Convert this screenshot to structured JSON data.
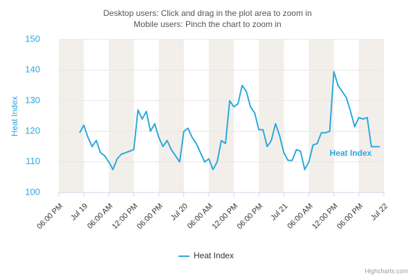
{
  "chart_data": {
    "type": "line",
    "title": "Desktop users: Click and drag in the plot area to zoom in",
    "subtitle": "Mobile users: Pinch the chart to zoom in",
    "yaxis_title": "Heat Index",
    "credits": "Highcharts.com",
    "x": [
      "Jul 18 23:00",
      "Jul 19 00:00",
      "Jul 19 01:00",
      "Jul 19 02:00",
      "Jul 19 03:00",
      "Jul 19 04:00",
      "Jul 19 05:00",
      "Jul 19 06:00",
      "Jul 19 07:00",
      "Jul 19 08:00",
      "Jul 19 09:00",
      "Jul 19 10:00",
      "Jul 19 11:00",
      "Jul 19 12:00",
      "Jul 19 13:00",
      "Jul 19 14:00",
      "Jul 19 15:00",
      "Jul 19 16:00",
      "Jul 19 17:00",
      "Jul 19 18:00",
      "Jul 19 19:00",
      "Jul 19 20:00",
      "Jul 19 21:00",
      "Jul 19 22:00",
      "Jul 19 23:00",
      "Jul 20 00:00",
      "Jul 20 01:00",
      "Jul 20 02:00",
      "Jul 20 03:00",
      "Jul 20 04:00",
      "Jul 20 05:00",
      "Jul 20 06:00",
      "Jul 20 07:00",
      "Jul 20 08:00",
      "Jul 20 09:00",
      "Jul 20 10:00",
      "Jul 20 11:00",
      "Jul 20 12:00",
      "Jul 20 13:00",
      "Jul 20 14:00",
      "Jul 20 15:00",
      "Jul 20 16:00",
      "Jul 20 17:00",
      "Jul 20 18:00",
      "Jul 20 19:00",
      "Jul 20 20:00",
      "Jul 20 21:00",
      "Jul 20 22:00",
      "Jul 20 23:00",
      "Jul 21 00:00",
      "Jul 21 01:00",
      "Jul 21 02:00",
      "Jul 21 03:00",
      "Jul 21 04:00",
      "Jul 21 05:00",
      "Jul 21 06:00",
      "Jul 21 07:00",
      "Jul 21 08:00",
      "Jul 21 09:00",
      "Jul 21 10:00",
      "Jul 21 11:00",
      "Jul 21 12:00",
      "Jul 21 13:00",
      "Jul 21 14:00",
      "Jul 21 15:00",
      "Jul 21 16:00",
      "Jul 21 17:00",
      "Jul 21 18:00",
      "Jul 21 19:00",
      "Jul 21 20:00",
      "Jul 21 21:00",
      "Jul 21 22:00",
      "Jul 21 23:00"
    ],
    "series": [
      {
        "name": "Heat Index",
        "color": "#2ba7df",
        "values": [
          119.5,
          122,
          118,
          115,
          117,
          113,
          112,
          110,
          107.5,
          111,
          112.5,
          113,
          113.5,
          114,
          127,
          124,
          126.5,
          120,
          122.5,
          118,
          115,
          117,
          114,
          112,
          110,
          120,
          121,
          118,
          116,
          113,
          110,
          111,
          107.5,
          110,
          117,
          116,
          130,
          128,
          129,
          135,
          133,
          128,
          126,
          120.5,
          120.5,
          115,
          117,
          122.5,
          118.5,
          113,
          110.5,
          110.5,
          114,
          113.5,
          107.5,
          110,
          115.5,
          116,
          119.5,
          119.5,
          120,
          139.5,
          135,
          133,
          131,
          126.5,
          121.5,
          124.5,
          124,
          124.5,
          115,
          115,
          115
        ]
      }
    ],
    "xlim": [
      "Jul 18 18:00",
      "Jul 22 00:00"
    ],
    "xticks": [
      {
        "value": "Jul 18 18:00",
        "label": "06:00 PM"
      },
      {
        "value": "Jul 19 00:00",
        "label": "Jul 19"
      },
      {
        "value": "Jul 19 06:00",
        "label": "06:00 AM"
      },
      {
        "value": "Jul 19 12:00",
        "label": "12:00 PM"
      },
      {
        "value": "Jul 19 18:00",
        "label": "06:00 PM"
      },
      {
        "value": "Jul 20 00:00",
        "label": "Jul 20"
      },
      {
        "value": "Jul 20 06:00",
        "label": "06:00 AM"
      },
      {
        "value": "Jul 20 12:00",
        "label": "12:00 PM"
      },
      {
        "value": "Jul 20 18:00",
        "label": "06:00 PM"
      },
      {
        "value": "Jul 21 00:00",
        "label": "Jul 21"
      },
      {
        "value": "Jul 21 06:00",
        "label": "06:00 AM"
      },
      {
        "value": "Jul 21 12:00",
        "label": "12:00 PM"
      },
      {
        "value": "Jul 21 18:00",
        "label": "06:00 PM"
      },
      {
        "value": "Jul 22 00:00",
        "label": "Jul 22"
      }
    ],
    "ylim": [
      100,
      150
    ],
    "yticks": [
      100,
      110,
      120,
      130,
      140,
      150
    ],
    "grid": true,
    "band_color": "#f2efea"
  }
}
